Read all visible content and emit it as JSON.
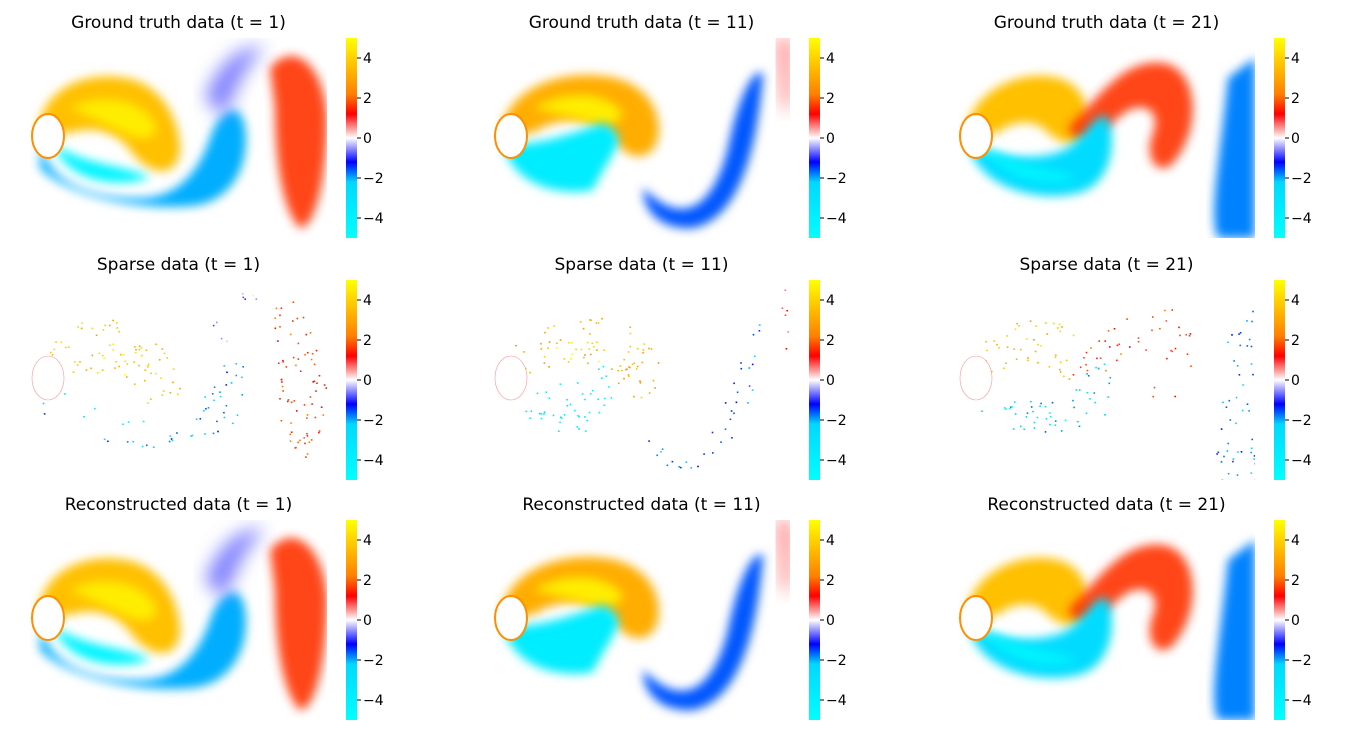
{
  "chart_data": {
    "type": "heatmap",
    "layout": {
      "rows": 3,
      "cols": 3
    },
    "row_titles": [
      "Ground truth data",
      "Sparse data",
      "Reconstructed data"
    ],
    "time_steps": [
      1,
      11,
      21
    ],
    "panels": [
      {
        "title": "Ground truth data (t = 1)",
        "kind": "ground_truth",
        "t": 1
      },
      {
        "title": "Ground truth data (t = 11)",
        "kind": "ground_truth",
        "t": 11
      },
      {
        "title": "Ground truth data (t = 21)",
        "kind": "ground_truth",
        "t": 21
      },
      {
        "title": "Sparse data (t = 1)",
        "kind": "sparse",
        "t": 1
      },
      {
        "title": "Sparse data (t = 11)",
        "kind": "sparse",
        "t": 11
      },
      {
        "title": "Sparse data (t = 21)",
        "kind": "sparse",
        "t": 21
      },
      {
        "title": "Reconstructed data (t = 1)",
        "kind": "reconstructed",
        "t": 1
      },
      {
        "title": "Reconstructed data (t = 11)",
        "kind": "reconstructed",
        "t": 11
      },
      {
        "title": "Reconstructed data (t = 21)",
        "kind": "reconstructed",
        "t": 21
      }
    ],
    "colorbar": {
      "range": [
        -5,
        5
      ],
      "ticks": [
        4,
        2,
        0,
        -2,
        -4
      ],
      "tick_labels": [
        "4",
        "2",
        "0",
        "−2",
        "−4"
      ],
      "colormap": [
        {
          "value": -5,
          "color": "#00ffff"
        },
        {
          "value": -2.2,
          "color": "#00d8ff"
        },
        {
          "value": -1.2,
          "color": "#0000ff"
        },
        {
          "value": 0,
          "color": "#ffffff"
        },
        {
          "value": 1.2,
          "color": "#ff0000"
        },
        {
          "value": 2.2,
          "color": "#ff8000"
        },
        {
          "value": 5,
          "color": "#ffff00"
        }
      ]
    },
    "axes_visible": false,
    "grid": false
  }
}
